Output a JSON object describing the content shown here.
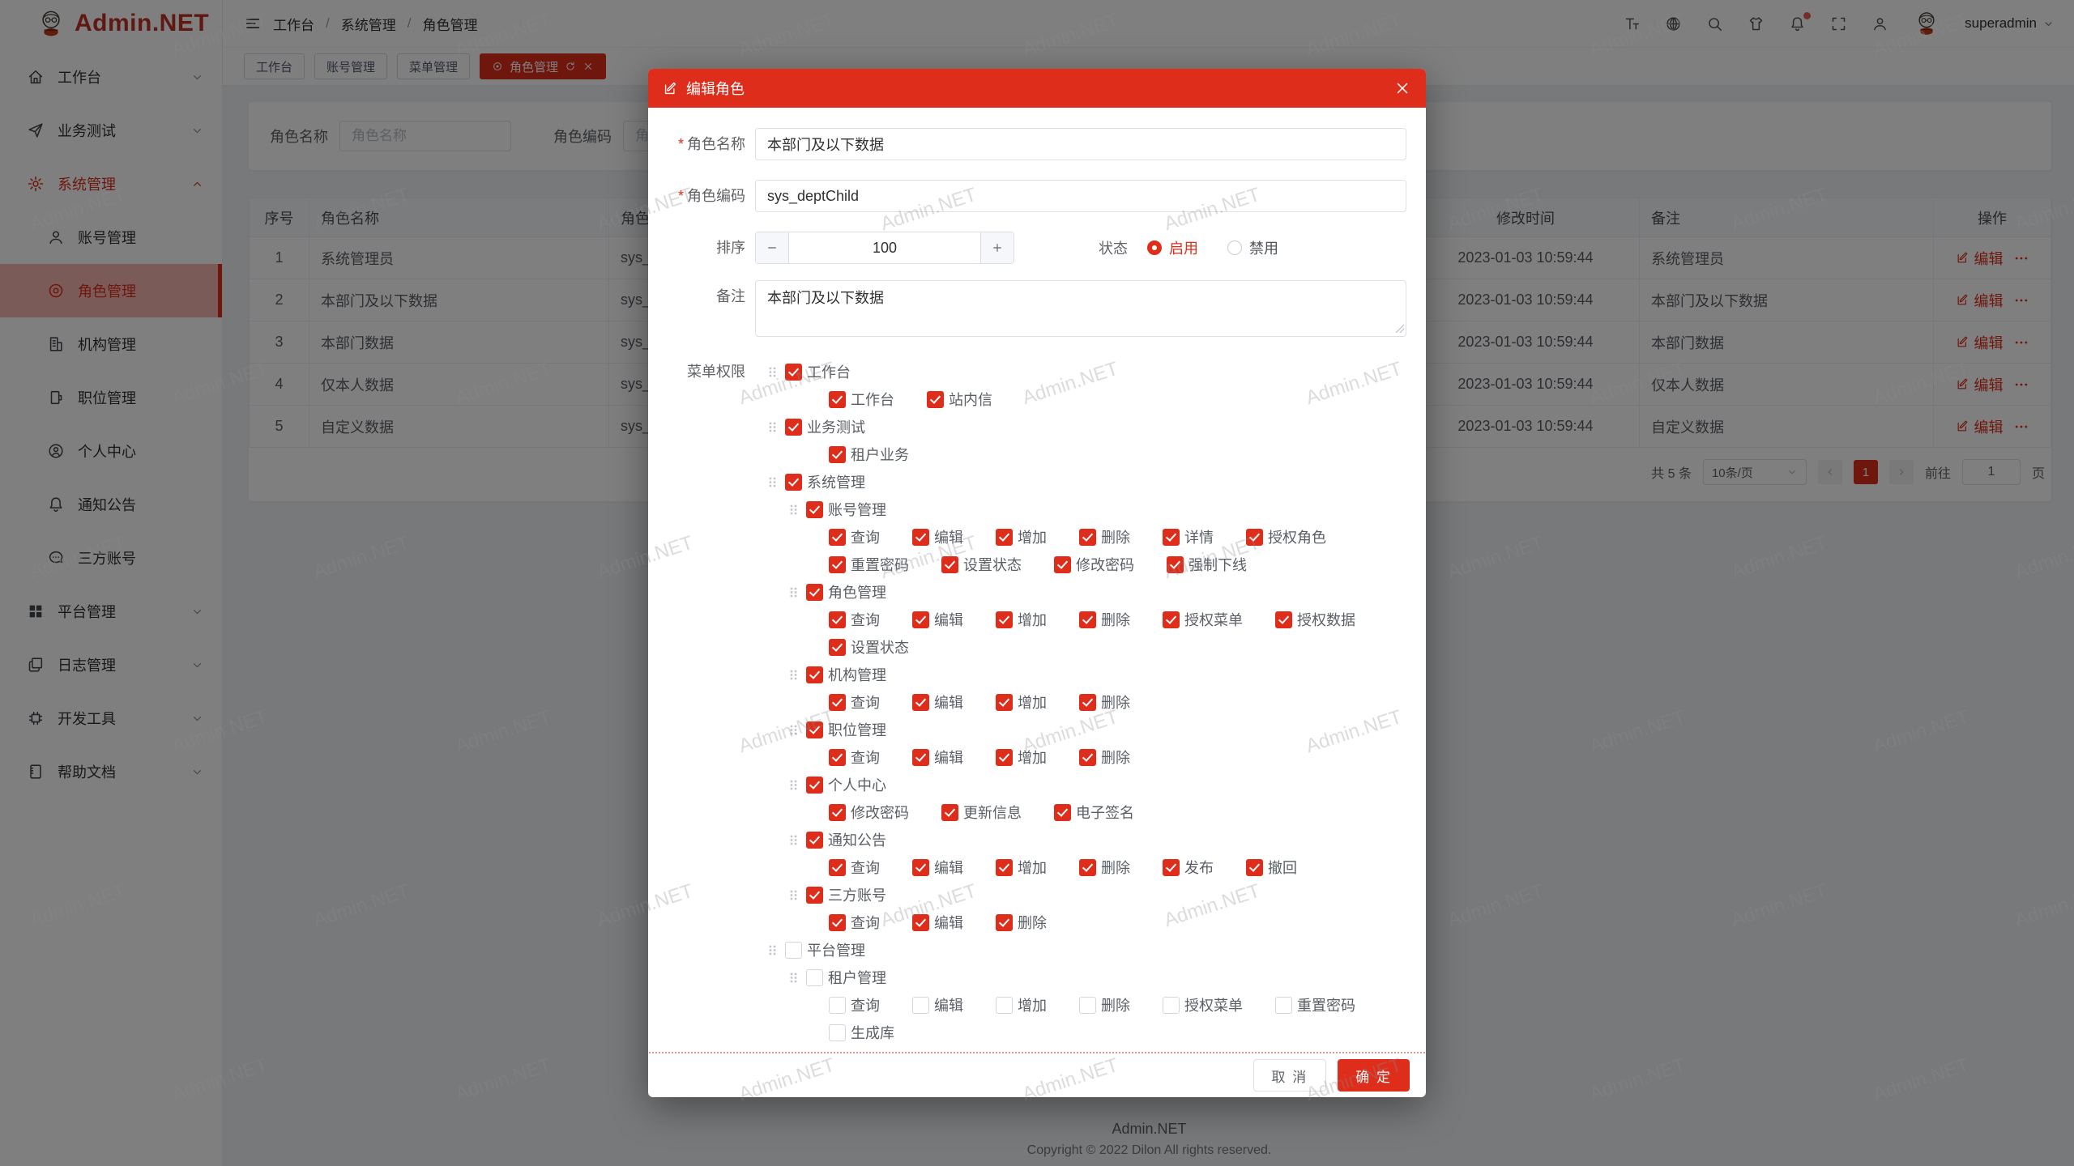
{
  "brand": {
    "name": "Admin.NET"
  },
  "colors": {
    "primary": "#df2d1b",
    "logo": "#c03224"
  },
  "topbar": {
    "breadcrumb": [
      "工作台",
      "系统管理",
      "角色管理"
    ],
    "icons": [
      "font-size",
      "language",
      "search",
      "theme",
      "notification",
      "fullscreen",
      "user"
    ],
    "notification_badge": true,
    "username": "superadmin"
  },
  "tabs": [
    {
      "label": "工作台",
      "active": false
    },
    {
      "label": "账号管理",
      "active": false
    },
    {
      "label": "菜单管理",
      "active": false
    },
    {
      "label": "角色管理",
      "active": true
    }
  ],
  "sidebar": {
    "items": [
      {
        "label": "工作台",
        "icon": "home",
        "chevron": "down"
      },
      {
        "label": "业务测试",
        "icon": "send",
        "chevron": "down"
      },
      {
        "label": "系统管理",
        "icon": "gear",
        "chevron": "up",
        "highlight": true
      },
      {
        "label": "账号管理",
        "icon": "user",
        "sub": true
      },
      {
        "label": "角色管理",
        "icon": "role",
        "sub": true,
        "active": true
      },
      {
        "label": "机构管理",
        "icon": "org",
        "sub": true
      },
      {
        "label": "职位管理",
        "icon": "post",
        "sub": true
      },
      {
        "label": "个人中心",
        "icon": "profile",
        "sub": true
      },
      {
        "label": "通知公告",
        "icon": "bell",
        "sub": true
      },
      {
        "label": "三方账号",
        "icon": "chat",
        "sub": true
      },
      {
        "label": "平台管理",
        "icon": "grid",
        "chevron": "down"
      },
      {
        "label": "日志管理",
        "icon": "logs",
        "chevron": "down"
      },
      {
        "label": "开发工具",
        "icon": "chip",
        "chevron": "down"
      },
      {
        "label": "帮助文档",
        "icon": "book",
        "chevron": "down"
      }
    ]
  },
  "search": {
    "name_label": "角色名称",
    "name_placeholder": "角色名称",
    "code_label": "角色编码",
    "code_placeholder": "角色编码"
  },
  "table": {
    "headers": [
      "序号",
      "角色名称",
      "角色编码",
      "修改时间",
      "备注",
      "操作"
    ],
    "action_label": "编辑",
    "rows": [
      {
        "no": "1",
        "name": "系统管理员",
        "code": "sys_admin",
        "time": "2023-01-03 10:59:44",
        "remark": "系统管理员"
      },
      {
        "no": "2",
        "name": "本部门及以下数据",
        "code": "sys_deptChild",
        "time": "2023-01-03 10:59:44",
        "remark": "本部门及以下数据"
      },
      {
        "no": "3",
        "name": "本部门数据",
        "code": "sys_dept",
        "time": "2023-01-03 10:59:44",
        "remark": "本部门数据"
      },
      {
        "no": "4",
        "name": "仅本人数据",
        "code": "sys_self",
        "time": "2023-01-03 10:59:44",
        "remark": "仅本人数据"
      },
      {
        "no": "5",
        "name": "自定义数据",
        "code": "sys_custom",
        "time": "2023-01-03 10:59:44",
        "remark": "自定义数据"
      }
    ]
  },
  "pagination": {
    "total": "共 5 条",
    "page_size": "10条/页",
    "current_page": "1",
    "goto_label": "前往",
    "goto_value": "1",
    "goto_unit": "页"
  },
  "modal": {
    "title": "编辑角色",
    "name_label": "角色名称",
    "name_value": "本部门及以下数据",
    "code_label": "角色编码",
    "code_value": "sys_deptChild",
    "sort_label": "排序",
    "sort_value": "100",
    "status_label": "状态",
    "status_options": [
      {
        "label": "启用",
        "selected": true
      },
      {
        "label": "禁用",
        "selected": false
      }
    ],
    "remark_label": "备注",
    "remark_value": "本部门及以下数据",
    "menu_label": "菜单权限",
    "cancel_label": "取 消",
    "ok_label": "确 定",
    "tree": [
      {
        "type": "node",
        "level": 0,
        "checked": true,
        "label": "工作台"
      },
      {
        "type": "perms",
        "level": 1,
        "items": [
          {
            "label": "工作台",
            "checked": true
          },
          {
            "label": "站内信",
            "checked": true
          }
        ]
      },
      {
        "type": "node",
        "level": 0,
        "checked": true,
        "label": "业务测试"
      },
      {
        "type": "perms",
        "level": 1,
        "items": [
          {
            "label": "租户业务",
            "checked": true
          }
        ]
      },
      {
        "type": "node",
        "level": 0,
        "checked": true,
        "label": "系统管理"
      },
      {
        "type": "node",
        "level": 1,
        "checked": true,
        "label": "账号管理"
      },
      {
        "type": "perms",
        "level": 2,
        "items": [
          {
            "label": "查询",
            "checked": true
          },
          {
            "label": "编辑",
            "checked": true
          },
          {
            "label": "增加",
            "checked": true
          },
          {
            "label": "删除",
            "checked": true
          },
          {
            "label": "详情",
            "checked": true
          },
          {
            "label": "授权角色",
            "checked": true
          }
        ]
      },
      {
        "type": "perms",
        "level": 2,
        "items": [
          {
            "label": "重置密码",
            "checked": true
          },
          {
            "label": "设置状态",
            "checked": true
          },
          {
            "label": "修改密码",
            "checked": true
          },
          {
            "label": "强制下线",
            "checked": true
          }
        ]
      },
      {
        "type": "node",
        "level": 1,
        "checked": true,
        "label": "角色管理"
      },
      {
        "type": "perms",
        "level": 2,
        "items": [
          {
            "label": "查询",
            "checked": true
          },
          {
            "label": "编辑",
            "checked": true
          },
          {
            "label": "增加",
            "checked": true
          },
          {
            "label": "删除",
            "checked": true
          },
          {
            "label": "授权菜单",
            "checked": true
          },
          {
            "label": "授权数据",
            "checked": true
          }
        ]
      },
      {
        "type": "perms",
        "level": 2,
        "items": [
          {
            "label": "设置状态",
            "checked": true
          }
        ]
      },
      {
        "type": "node",
        "level": 1,
        "checked": true,
        "label": "机构管理"
      },
      {
        "type": "perms",
        "level": 2,
        "items": [
          {
            "label": "查询",
            "checked": true
          },
          {
            "label": "编辑",
            "checked": true
          },
          {
            "label": "增加",
            "checked": true
          },
          {
            "label": "删除",
            "checked": true
          }
        ]
      },
      {
        "type": "node",
        "level": 1,
        "checked": true,
        "label": "职位管理"
      },
      {
        "type": "perms",
        "level": 2,
        "items": [
          {
            "label": "查询",
            "checked": true
          },
          {
            "label": "编辑",
            "checked": true
          },
          {
            "label": "增加",
            "checked": true
          },
          {
            "label": "删除",
            "checked": true
          }
        ]
      },
      {
        "type": "node",
        "level": 1,
        "checked": true,
        "label": "个人中心"
      },
      {
        "type": "perms",
        "level": 2,
        "items": [
          {
            "label": "修改密码",
            "checked": true
          },
          {
            "label": "更新信息",
            "checked": true
          },
          {
            "label": "电子签名",
            "checked": true
          }
        ]
      },
      {
        "type": "node",
        "level": 1,
        "checked": true,
        "label": "通知公告"
      },
      {
        "type": "perms",
        "level": 2,
        "items": [
          {
            "label": "查询",
            "checked": true
          },
          {
            "label": "编辑",
            "checked": true
          },
          {
            "label": "增加",
            "checked": true
          },
          {
            "label": "删除",
            "checked": true
          },
          {
            "label": "发布",
            "checked": true
          },
          {
            "label": "撤回",
            "checked": true
          }
        ]
      },
      {
        "type": "node",
        "level": 1,
        "checked": true,
        "label": "三方账号"
      },
      {
        "type": "perms",
        "level": 2,
        "items": [
          {
            "label": "查询",
            "checked": true
          },
          {
            "label": "编辑",
            "checked": true
          },
          {
            "label": "删除",
            "checked": true
          }
        ]
      },
      {
        "type": "node",
        "level": 0,
        "checked": false,
        "label": "平台管理"
      },
      {
        "type": "node",
        "level": 1,
        "checked": false,
        "label": "租户管理"
      },
      {
        "type": "perms",
        "level": 2,
        "items": [
          {
            "label": "查询",
            "checked": false
          },
          {
            "label": "编辑",
            "checked": false
          },
          {
            "label": "增加",
            "checked": false
          },
          {
            "label": "删除",
            "checked": false
          },
          {
            "label": "授权菜单",
            "checked": false
          },
          {
            "label": "重置密码",
            "checked": false
          }
        ]
      },
      {
        "type": "perms",
        "level": 2,
        "items": [
          {
            "label": "生成库",
            "checked": false
          }
        ]
      }
    ]
  },
  "footer": {
    "app": "Admin.NET",
    "copyright": "Copyright © 2022 Dilon All rights reserved."
  },
  "watermark": {
    "text": "Admin.NET"
  }
}
